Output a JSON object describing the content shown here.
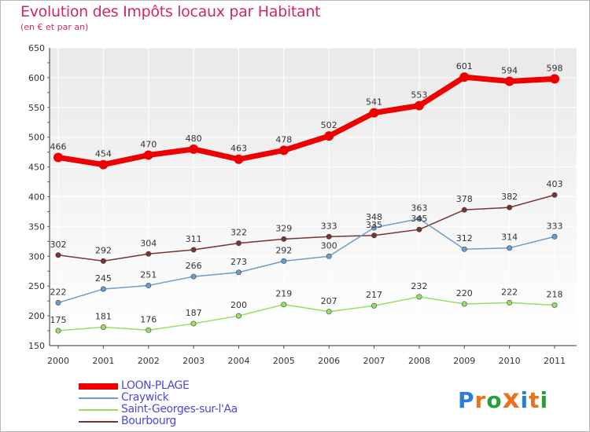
{
  "chart_data": {
    "type": "line",
    "title": "Evolution des Impôts locaux par Habitant",
    "subtitle": "(en € et par an)",
    "x": [
      "2000",
      "2001",
      "2002",
      "2003",
      "2004",
      "2005",
      "2006",
      "2007",
      "2008",
      "2009",
      "2010",
      "2011"
    ],
    "ylim": [
      150,
      650
    ],
    "yticks": [
      150,
      200,
      250,
      300,
      350,
      400,
      450,
      500,
      550,
      600,
      650
    ],
    "grid": true,
    "legend_position": "bottom-left",
    "series": [
      {
        "name": "LOON-PLAGE",
        "color": "#ee0000",
        "values": [
          466,
          454,
          470,
          480,
          463,
          478,
          502,
          541,
          553,
          601,
          594,
          598
        ]
      },
      {
        "name": "Craywick",
        "color": "#6b9ccc",
        "values": [
          222,
          245,
          251,
          266,
          273,
          292,
          300,
          348,
          363,
          312,
          314,
          333
        ]
      },
      {
        "name": "Saint-Georges-sur-l'Aa",
        "color": "#99dd66",
        "values": [
          175,
          181,
          176,
          187,
          200,
          219,
          207,
          217,
          232,
          220,
          222,
          218
        ]
      },
      {
        "name": "Bourbourg",
        "color": "#7a3333",
        "values": [
          302,
          292,
          304,
          311,
          322,
          329,
          333,
          335,
          345,
          378,
          382,
          403
        ]
      }
    ]
  },
  "logo": {
    "letters": [
      "P",
      "r",
      "o",
      "x",
      "i",
      "t",
      "i"
    ],
    "colors": [
      "#2a7fd4",
      "#e8731c",
      "#2a9d3c",
      "#e8731c",
      "#2a7fd4",
      "#e8731c",
      "#2a9d3c"
    ]
  }
}
